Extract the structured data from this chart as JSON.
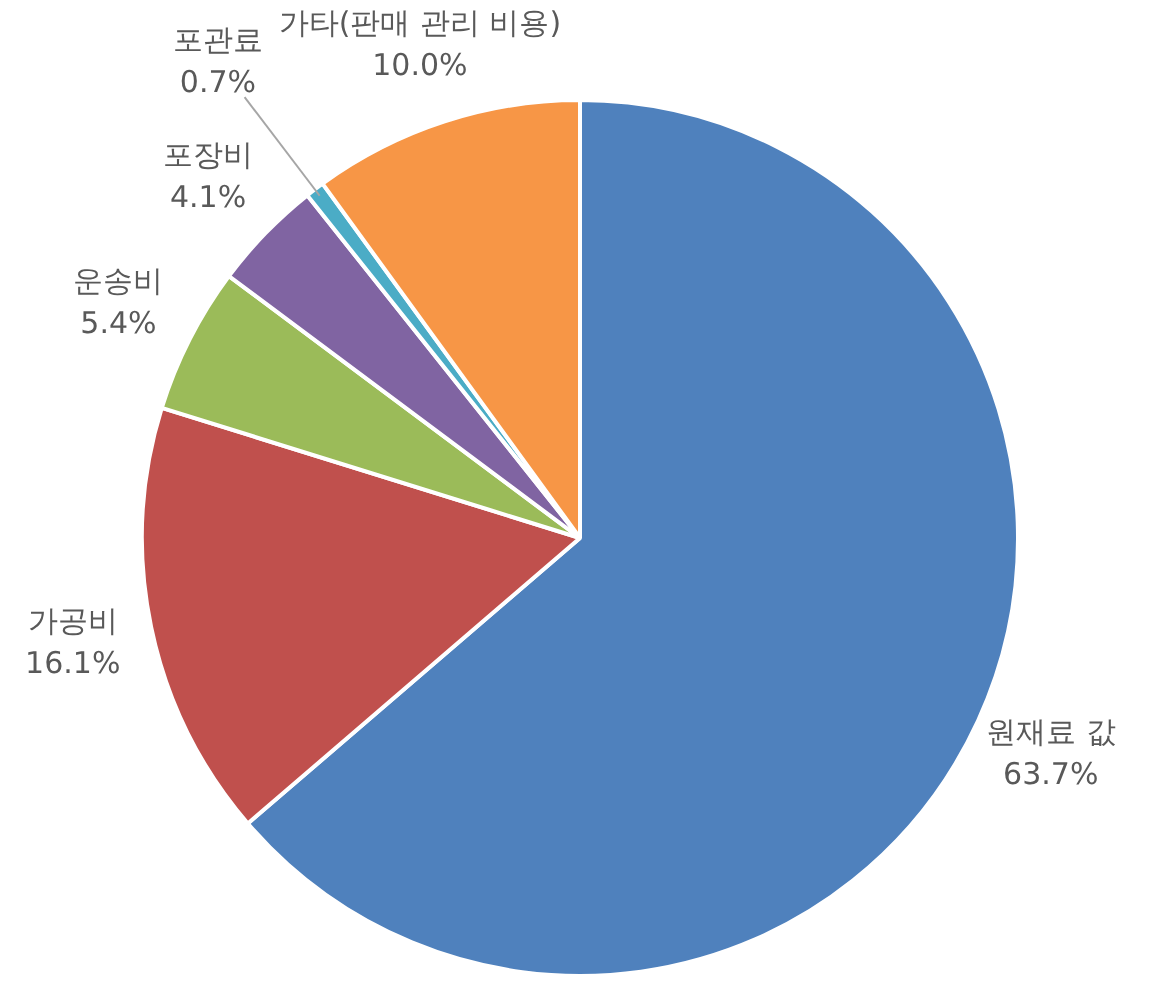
{
  "chart_data": {
    "type": "pie",
    "categories": [
      "원재료 값",
      "가공비",
      "운송비",
      "포장비",
      "포관료",
      "가타(판매 관리 비용)"
    ],
    "values": [
      63.7,
      16.1,
      5.4,
      4.1,
      0.7,
      10.0
    ],
    "colors": [
      "#4f81bd",
      "#c0504d",
      "#9bbb59",
      "#8064a2",
      "#4bacc6",
      "#f79646"
    ],
    "value_labels": [
      "63.7%",
      "16.1%",
      "5.4%",
      "4.1%",
      "0.7%",
      "10.0%"
    ],
    "legend": false
  }
}
